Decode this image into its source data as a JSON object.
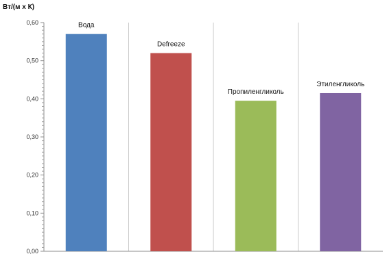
{
  "chart_data": {
    "type": "bar",
    "ylabel": "Вт/(м х К)",
    "categories": [
      "Вода",
      "Defreeze",
      "Пропиленгликоль",
      "Этиленгликоль"
    ],
    "values": [
      0.57,
      0.52,
      0.395,
      0.415
    ],
    "colors": [
      "#4f81bd",
      "#c0504d",
      "#9bbb59",
      "#8064a2"
    ],
    "ylim": [
      0,
      0.6
    ],
    "yticks": [
      {
        "value": 0.0,
        "label": "0,00"
      },
      {
        "value": 0.1,
        "label": "0,10"
      },
      {
        "value": 0.2,
        "label": "0,20"
      },
      {
        "value": 0.3,
        "label": "0,30"
      },
      {
        "value": 0.4,
        "label": "0,40"
      },
      {
        "value": 0.5,
        "label": "0,50"
      },
      {
        "value": 0.6,
        "label": "0,60"
      }
    ],
    "grid": true,
    "legend": "none"
  }
}
